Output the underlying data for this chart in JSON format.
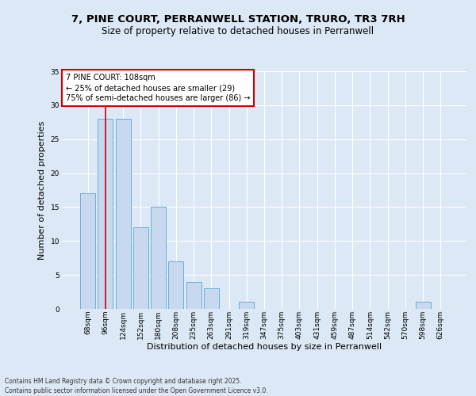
{
  "title_line1": "7, PINE COURT, PERRANWELL STATION, TRURO, TR3 7RH",
  "title_line2": "Size of property relative to detached houses in Perranwell",
  "xlabel": "Distribution of detached houses by size in Perranwell",
  "ylabel": "Number of detached properties",
  "bin_labels": [
    "68sqm",
    "96sqm",
    "124sqm",
    "152sqm",
    "180sqm",
    "208sqm",
    "235sqm",
    "263sqm",
    "291sqm",
    "319sqm",
    "347sqm",
    "375sqm",
    "403sqm",
    "431sqm",
    "459sqm",
    "487sqm",
    "514sqm",
    "542sqm",
    "570sqm",
    "598sqm",
    "626sqm"
  ],
  "bar_values": [
    17,
    28,
    28,
    12,
    15,
    7,
    4,
    3,
    0,
    1,
    0,
    0,
    0,
    0,
    0,
    0,
    0,
    0,
    0,
    1,
    0
  ],
  "bar_color": "#c8d9ef",
  "bar_edge_color": "#6baed6",
  "background_color": "#dce8f5",
  "annotation_text": "7 PINE COURT: 108sqm\n← 25% of detached houses are smaller (29)\n75% of semi-detached houses are larger (86) →",
  "annotation_box_color": "#ffffff",
  "annotation_box_edge": "#cc0000",
  "vline_color": "#cc0000",
  "vline_x_index": 1.0,
  "ylim": [
    0,
    35
  ],
  "yticks": [
    0,
    5,
    10,
    15,
    20,
    25,
    30,
    35
  ],
  "footnote": "Contains HM Land Registry data © Crown copyright and database right 2025.\nContains public sector information licensed under the Open Government Licence v3.0.",
  "title_fontsize": 9.5,
  "subtitle_fontsize": 8.5,
  "axis_label_fontsize": 8,
  "tick_fontsize": 6.5,
  "annotation_fontsize": 7,
  "footnote_fontsize": 5.5
}
